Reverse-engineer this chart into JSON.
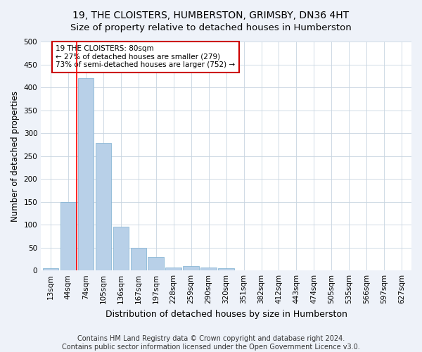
{
  "title": "19, THE CLOISTERS, HUMBERSTON, GRIMSBY, DN36 4HT",
  "subtitle": "Size of property relative to detached houses in Humberston",
  "xlabel": "Distribution of detached houses by size in Humberston",
  "ylabel": "Number of detached properties",
  "footer1": "Contains HM Land Registry data © Crown copyright and database right 2024.",
  "footer2": "Contains public sector information licensed under the Open Government Licence v3.0.",
  "bar_labels": [
    "13sqm",
    "44sqm",
    "74sqm",
    "105sqm",
    "136sqm",
    "167sqm",
    "197sqm",
    "228sqm",
    "259sqm",
    "290sqm",
    "320sqm",
    "351sqm",
    "382sqm",
    "412sqm",
    "443sqm",
    "474sqm",
    "505sqm",
    "535sqm",
    "566sqm",
    "597sqm",
    "627sqm"
  ],
  "bar_values": [
    5,
    150,
    420,
    278,
    95,
    50,
    30,
    7,
    10,
    7,
    5,
    0,
    0,
    0,
    0,
    0,
    0,
    0,
    0,
    0,
    0
  ],
  "bar_color": "#b8d0e8",
  "bar_edge_color": "#7aaed0",
  "annotation_text": "19 THE CLOISTERS: 80sqm\n← 27% of detached houses are smaller (279)\n73% of semi-detached houses are larger (752) →",
  "annotation_box_color": "#ffffff",
  "annotation_box_edge": "#cc0000",
  "red_line_x": 1.5,
  "ylim": [
    0,
    500
  ],
  "yticks": [
    0,
    50,
    100,
    150,
    200,
    250,
    300,
    350,
    400,
    450,
    500
  ],
  "bg_color": "#eef2f9",
  "plot_bg_color": "#ffffff",
  "title_fontsize": 10,
  "xlabel_fontsize": 9,
  "ylabel_fontsize": 8.5,
  "tick_fontsize": 7.5,
  "footer_fontsize": 7,
  "annotation_fontsize": 7.5
}
